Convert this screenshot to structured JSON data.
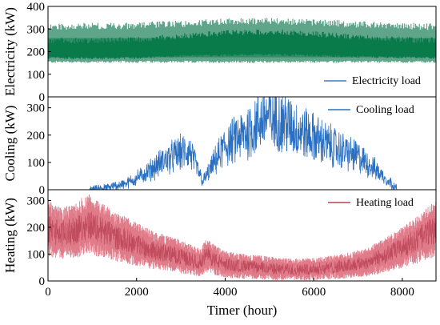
{
  "chart_data": [
    {
      "type": "line",
      "ylabel": "Electricity (kW)",
      "ylim": [
        0,
        400
      ],
      "yticks": [
        0,
        100,
        200,
        300,
        400
      ],
      "xlim": [
        0,
        8760
      ],
      "legend": "bottom-right",
      "colors": {
        "fill": "#5fa58a",
        "line": "#0f7d4f",
        "inner": "#0a7a4b"
      },
      "series": [
        {
          "name": "Electricity load",
          "x": [
            0,
            1000,
            2000,
            3000,
            4000,
            5000,
            6000,
            7000,
            8000,
            8760
          ],
          "daily_min": [
            150,
            150,
            150,
            150,
            150,
            150,
            150,
            150,
            150,
            150
          ],
          "daily_max": [
            325,
            328,
            330,
            338,
            348,
            350,
            345,
            335,
            328,
            325
          ],
          "dense_min": [
            168,
            165,
            168,
            175,
            180,
            182,
            178,
            172,
            170,
            168
          ],
          "dense_max": [
            260,
            262,
            265,
            280,
            295,
            300,
            290,
            275,
            265,
            262
          ]
        }
      ]
    },
    {
      "type": "line",
      "ylabel": "Cooling (kW)",
      "ylim": [
        0,
        340
      ],
      "yticks": [
        0,
        100,
        200,
        300
      ],
      "xlim": [
        0,
        8760
      ],
      "legend": "top-right",
      "colors": {
        "line": "#2b6fc0"
      },
      "series": [
        {
          "name": "Cooling load",
          "x": [
            0,
            700,
            1300,
            1800,
            2200,
            2600,
            3000,
            3200,
            3500,
            3800,
            4000,
            4300,
            4600,
            4900,
            5000,
            5300,
            5600,
            5900,
            6200,
            6600,
            7000,
            7300,
            7600,
            7900,
            8760
          ],
          "y": [
            0,
            0,
            5,
            25,
            60,
            105,
            135,
            140,
            30,
            110,
            160,
            190,
            220,
            270,
            260,
            250,
            220,
            200,
            175,
            145,
            120,
            85,
            45,
            0,
            0
          ]
        }
      ]
    },
    {
      "type": "line",
      "xlabel": "Timer (hour)",
      "ylabel": "Heating (kW)",
      "ylim": [
        0,
        340
      ],
      "yticks": [
        0,
        100,
        200,
        300
      ],
      "xlim": [
        0,
        8760
      ],
      "xticks": [
        0,
        2000,
        4000,
        6000,
        8000
      ],
      "legend": "top-right",
      "colors": {
        "fill": "#e07b8a",
        "line": "#b84050"
      },
      "series": [
        {
          "name": "Heating load",
          "x": [
            0,
            300,
            600,
            900,
            1200,
            1500,
            1800,
            2100,
            2400,
            2800,
            3200,
            3400,
            3600,
            3800,
            4000,
            4400,
            4800,
            5200,
            5600,
            6000,
            6400,
            6800,
            7200,
            7600,
            8000,
            8300,
            8600,
            8760
          ],
          "y": [
            195,
            175,
            185,
            215,
            190,
            165,
            150,
            130,
            112,
            100,
            80,
            70,
            95,
            75,
            62,
            55,
            50,
            45,
            42,
            45,
            50,
            58,
            70,
            95,
            125,
            150,
            180,
            195
          ]
        }
      ]
    }
  ]
}
